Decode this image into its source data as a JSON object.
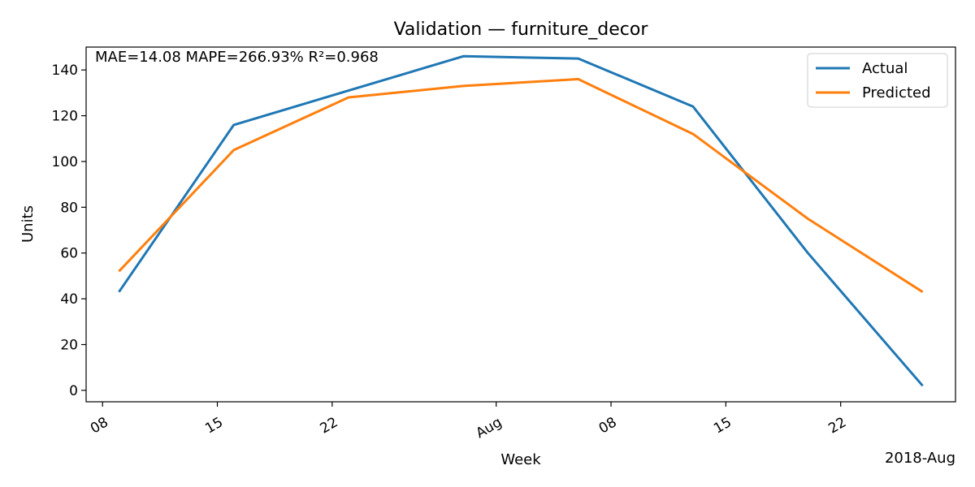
{
  "chart_data": {
    "type": "line",
    "title": "Validation — furniture_decor",
    "xlabel": "Week",
    "ylabel": "Units",
    "x_offset_label": "2018-Aug",
    "annotation": "MAE=14.08  MAPE=266.93%  R²=0.968",
    "x": [
      "2018-07-09",
      "2018-07-16",
      "2018-07-23",
      "2018-07-30",
      "2018-08-06",
      "2018-08-13",
      "2018-08-20",
      "2018-08-27"
    ],
    "xlim": [
      "2018-07-07",
      "2018-08-29"
    ],
    "ylim": [
      -5,
      150
    ],
    "yticks": [
      0,
      20,
      40,
      60,
      80,
      100,
      120,
      140
    ],
    "xticks": [
      {
        "date": "2018-07-08",
        "label": "08"
      },
      {
        "date": "2018-07-15",
        "label": "15"
      },
      {
        "date": "2018-07-22",
        "label": "22"
      },
      {
        "date": "2018-08-01",
        "label": "Aug"
      },
      {
        "date": "2018-08-08",
        "label": "08"
      },
      {
        "date": "2018-08-15",
        "label": "15"
      },
      {
        "date": "2018-08-22",
        "label": "22"
      }
    ],
    "series": [
      {
        "name": "Actual",
        "color": "#1f77b4",
        "values": [
          43,
          116,
          131,
          146,
          145,
          124,
          60,
          2
        ]
      },
      {
        "name": "Predicted",
        "color": "#ff7f0e",
        "values": [
          52,
          105,
          128,
          133,
          136,
          112,
          75,
          43
        ]
      }
    ],
    "grid": false,
    "legend": "top-right"
  }
}
